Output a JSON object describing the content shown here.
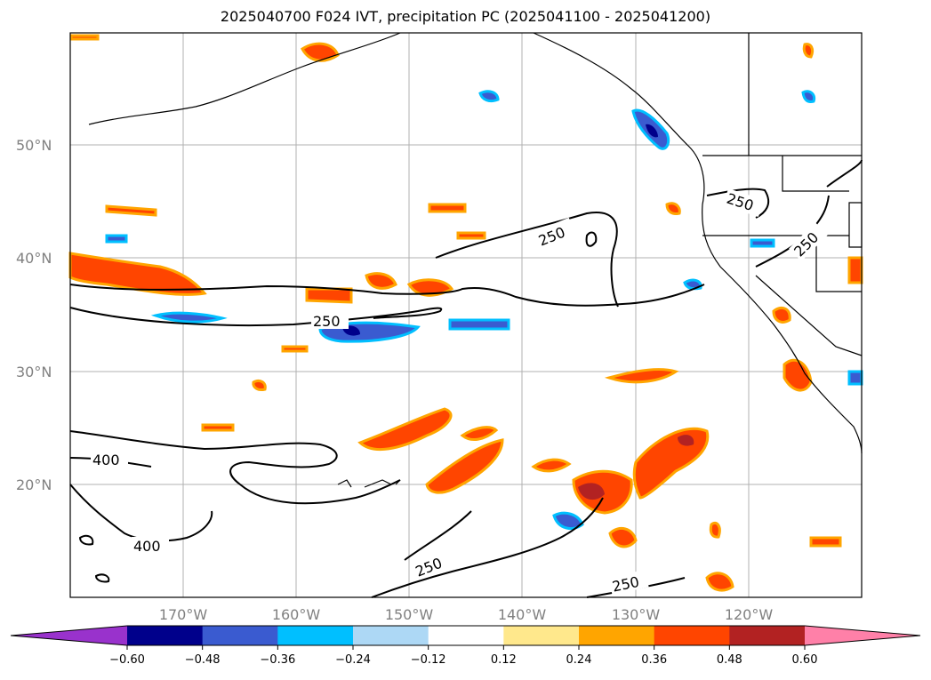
{
  "title": "2025040700 F024 IVT, precipitation PC (2025041100 - 2025041200)",
  "map": {
    "lat_labels": [
      "50°N",
      "40°N",
      "30°N",
      "20°N"
    ],
    "lon_labels": [
      "170°W",
      "160°W",
      "150°W",
      "140°W",
      "130°W",
      "120°W"
    ],
    "contour_labels": [
      "250",
      "250",
      "250",
      "250",
      "250",
      "250",
      "400",
      "400"
    ],
    "contour_line_color": "#000000",
    "grid_color": "#b0b0b0"
  },
  "colorbar": {
    "ticks": [
      "−0.60",
      "−0.48",
      "−0.36",
      "−0.24",
      "−0.12",
      "0.12",
      "0.24",
      "0.36",
      "0.48",
      "0.60"
    ],
    "colors": [
      "#9932cc",
      "#00008b",
      "#3a5bd0",
      "#00bfff",
      "#add8f5",
      "#ffffff",
      "#ffe88c",
      "#ffa500",
      "#ff4500",
      "#b22222",
      "#ff80a8"
    ]
  }
}
